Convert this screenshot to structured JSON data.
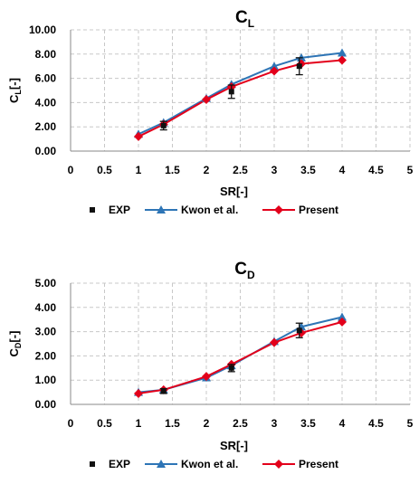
{
  "colors": {
    "exp": "#111111",
    "kwon": "#2e75b6",
    "present": "#e3001b",
    "grid": "#c8c8c8",
    "axis": "#8a8a8a"
  },
  "chart_data": [
    {
      "type": "line",
      "title_main": "C",
      "title_sub": "L",
      "ylabel_main": "C",
      "ylabel_sub": "L",
      "ylabel_unit": "[-]",
      "xlabel": "SR[-]",
      "xlim": [
        0,
        5
      ],
      "ylim": [
        0,
        10
      ],
      "xticks": [
        "0",
        "0.5",
        "1",
        "1.5",
        "2",
        "2.5",
        "3",
        "3.5",
        "4",
        "4.5",
        "5"
      ],
      "yticks": [
        "0.00",
        "2.00",
        "4.00",
        "6.00",
        "8.00",
        "10.00"
      ],
      "grid": true,
      "legend": "bottom",
      "series": [
        {
          "name": "EXP",
          "x": [
            1.37,
            2.37,
            3.37
          ],
          "y": [
            2.1,
            4.9,
            7.0
          ],
          "err": [
            0.35,
            0.55,
            0.7
          ]
        },
        {
          "name": "Kwon et al.",
          "x": [
            1.0,
            1.37,
            2.0,
            2.37,
            3.0,
            3.4,
            4.0
          ],
          "y": [
            1.4,
            2.35,
            4.35,
            5.5,
            7.0,
            7.7,
            8.1
          ]
        },
        {
          "name": "Present",
          "x": [
            1.0,
            1.37,
            2.0,
            2.37,
            3.0,
            3.4,
            4.0
          ],
          "y": [
            1.2,
            2.2,
            4.25,
            5.3,
            6.6,
            7.2,
            7.5
          ]
        }
      ]
    },
    {
      "type": "line",
      "title_main": "C",
      "title_sub": "D",
      "ylabel_main": "C",
      "ylabel_sub": "D",
      "ylabel_unit": "[-]",
      "xlabel": "SR[-]",
      "xlim": [
        0,
        5
      ],
      "ylim": [
        0,
        5
      ],
      "xticks": [
        "0",
        "0.5",
        "1",
        "1.5",
        "2",
        "2.5",
        "3",
        "3.5",
        "4",
        "4.5",
        "5"
      ],
      "yticks": [
        "0.00",
        "1.00",
        "2.00",
        "3.00",
        "4.00",
        "5.00"
      ],
      "grid": true,
      "legend": "bottom",
      "series": [
        {
          "name": "EXP",
          "x": [
            1.37,
            2.37,
            3.37
          ],
          "y": [
            0.55,
            1.5,
            3.05
          ],
          "err": [
            0.1,
            0.15,
            0.3
          ]
        },
        {
          "name": "Kwon et al.",
          "x": [
            1.0,
            1.37,
            2.0,
            2.37,
            3.0,
            3.4,
            4.0
          ],
          "y": [
            0.5,
            0.6,
            1.1,
            1.6,
            2.6,
            3.2,
            3.6
          ]
        },
        {
          "name": "Present",
          "x": [
            1.0,
            1.37,
            2.0,
            2.37,
            3.0,
            3.4,
            4.0
          ],
          "y": [
            0.45,
            0.6,
            1.15,
            1.65,
            2.55,
            2.95,
            3.4
          ]
        }
      ]
    }
  ]
}
